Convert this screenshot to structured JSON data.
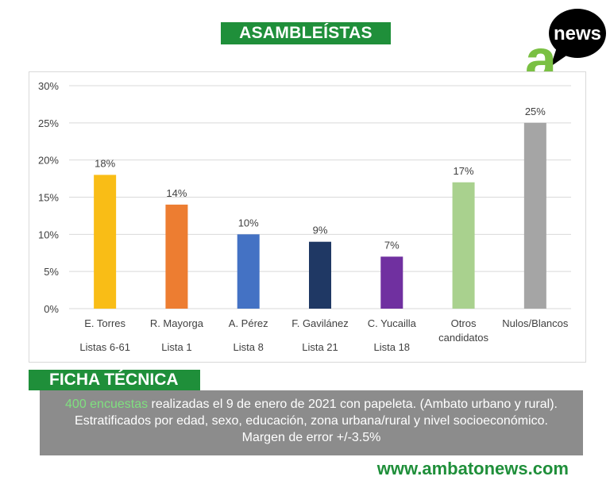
{
  "header": {
    "title": "ASAMBLEÍSTAS"
  },
  "logo": {
    "text": "news",
    "letter": "a"
  },
  "colors": {
    "brand_green": "#1f8f3a",
    "highlight_green": "#7fe07f",
    "panel_gray": "#8c8c8c"
  },
  "chart_data": {
    "type": "bar",
    "title": "ASAMBLEÍSTAS",
    "ylim": [
      0,
      30
    ],
    "yticks": [
      0,
      5,
      10,
      15,
      20,
      25,
      30
    ],
    "ytick_labels": [
      "0%",
      "5%",
      "10%",
      "15%",
      "20%",
      "25%",
      "30%"
    ],
    "grid": true,
    "categories": [
      {
        "line1": "E. Torres",
        "line2": "Listas 6-61",
        "value": 18,
        "label": "18%",
        "color": "#f9bd16"
      },
      {
        "line1": "R. Mayorga",
        "line2": "Lista 1",
        "value": 14,
        "label": "14%",
        "color": "#ed7d31"
      },
      {
        "line1": "A. Pérez",
        "line2": "Lista 8",
        "value": 10,
        "label": "10%",
        "color": "#4472c4"
      },
      {
        "line1": "F. Gavilánez",
        "line2": "Lista 21",
        "value": 9,
        "label": "9%",
        "color": "#1f3864"
      },
      {
        "line1": "C. Yucailla",
        "line2": "Lista 18",
        "value": 7,
        "label": "7%",
        "color": "#7030a0"
      },
      {
        "line1": "Otros",
        "line2": "candidatos",
        "value": 17,
        "label": "17%",
        "color": "#a9d18e"
      },
      {
        "line1": "Nulos/Blancos",
        "line2": "",
        "value": 25,
        "label": "25%",
        "color": "#a5a5a5"
      }
    ]
  },
  "ficha": {
    "label": "FICHA TÉCNICA",
    "highlight": "400 encuestas",
    "line1_rest": " realizadas el 9 de enero de 2021 con papeleta. (Ambato urbano y rural).",
    "line2": "Estratificados por edad, sexo, educación, zona urbana/rural y nivel socioeconómico.",
    "line3": "Margen de error +/-3.5%"
  },
  "footer": {
    "url": "www.ambatonews.com"
  }
}
